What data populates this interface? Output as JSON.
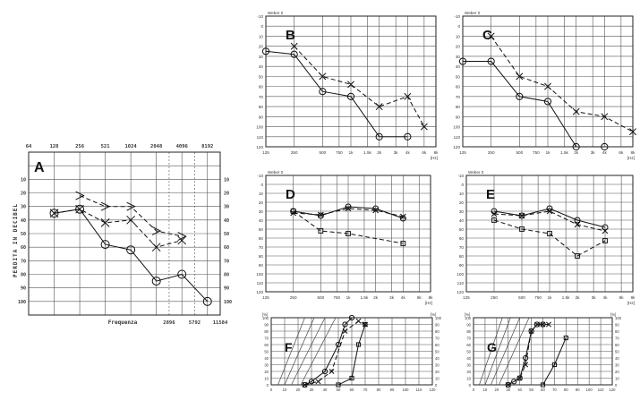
{
  "chart_data": [
    {
      "id": "A",
      "type": "line",
      "panel_label": "A",
      "xlabel": "Frequenza",
      "ylabel": "PERDITA IN DECIBEL",
      "top_ticks": [
        "64",
        "128",
        "256",
        "521",
        "1024",
        "2048",
        "4096",
        "8192"
      ],
      "bottom_ticks": [
        "2896",
        "5792",
        "11584"
      ],
      "left_ticks": [
        "10",
        "20",
        "30",
        "40",
        "50",
        "60",
        "70",
        "80",
        "90",
        "100"
      ],
      "right_ticks": [
        "10",
        "20",
        "30",
        "40",
        "50",
        "60",
        "70",
        "80",
        "90",
        "100"
      ],
      "ylim": [
        -10,
        110
      ],
      "series": [
        {
          "side": "right",
          "marker": "O",
          "x": [
            128,
            256,
            512,
            1024,
            2048,
            4096,
            8192
          ],
          "y": [
            35,
            32,
            58,
            62,
            85,
            80,
            100
          ]
        },
        {
          "side": "left",
          "marker": "X",
          "x": [
            128,
            256,
            512,
            1024,
            2048,
            4096
          ],
          "y": [
            35,
            32,
            42,
            40,
            60,
            55
          ]
        },
        {
          "side": "left",
          "marker": ">",
          "x": [
            256,
            512,
            1024,
            2048,
            4096
          ],
          "y": [
            22,
            30,
            30,
            48,
            52
          ]
        }
      ]
    },
    {
      "id": "B",
      "type": "line",
      "panel_label": "B",
      "ylabel": "Weber 0",
      "left_ticks": [
        "-10",
        "0",
        "10",
        "20",
        "30",
        "40",
        "50",
        "60",
        "70",
        "80",
        "90",
        "100",
        "110",
        "120"
      ],
      "bottom_ticks": [
        "125",
        "250",
        "500",
        "750",
        "1k",
        "1.5k",
        "2k",
        "3k",
        "4k",
        "6k",
        "8k"
      ],
      "xunit": "[Hz]",
      "ylim": [
        -10,
        120
      ],
      "series": [
        {
          "side": "right",
          "marker": "O",
          "x": [
            125,
            250,
            500,
            1000,
            2000,
            4000
          ],
          "y": [
            25,
            28,
            65,
            70,
            110,
            110
          ]
        },
        {
          "side": "left",
          "marker": "X",
          "x": [
            250,
            500,
            1000,
            2000,
            4000,
            6000
          ],
          "y": [
            20,
            50,
            58,
            80,
            70,
            100
          ]
        }
      ]
    },
    {
      "id": "C",
      "type": "line",
      "panel_label": "C",
      "ylabel": "Weber 0",
      "left_ticks": [
        "-10",
        "0",
        "10",
        "20",
        "30",
        "40",
        "50",
        "60",
        "70",
        "80",
        "90",
        "100",
        "110",
        "120"
      ],
      "bottom_ticks": [
        "125",
        "250",
        "500",
        "750",
        "1k",
        "1.5k",
        "2k",
        "3k",
        "4k",
        "6k",
        "8k"
      ],
      "xunit": "[Hz]",
      "ylim": [
        -10,
        120
      ],
      "series": [
        {
          "side": "right",
          "marker": "O",
          "x": [
            125,
            250,
            500,
            1000,
            2000,
            4000
          ],
          "y": [
            35,
            35,
            70,
            75,
            120,
            120
          ]
        },
        {
          "side": "left",
          "marker": "X",
          "x": [
            250,
            500,
            1000,
            2000,
            4000,
            8000
          ],
          "y": [
            10,
            50,
            60,
            85,
            90,
            105
          ]
        }
      ]
    },
    {
      "id": "D",
      "type": "line",
      "panel_label": "D",
      "ylabel": "Weber 0",
      "left_ticks": [
        "-10",
        "0",
        "10",
        "20",
        "30",
        "40",
        "50",
        "60",
        "70",
        "80",
        "90",
        "100",
        "110",
        "120"
      ],
      "bottom_ticks": [
        "125",
        "250",
        "500",
        "750",
        "1k",
        "1.5k",
        "2k",
        "3k",
        "4k",
        "6k",
        "8k"
      ],
      "xunit": "[Hz]",
      "ylim": [
        -10,
        120
      ],
      "series": [
        {
          "side": "right",
          "marker": "O",
          "x": [
            250,
            500,
            1000,
            2000,
            4000
          ],
          "y": [
            30,
            35,
            25,
            27,
            38
          ]
        },
        {
          "side": "left",
          "marker": "X",
          "x": [
            250,
            500,
            1000,
            2000,
            4000
          ],
          "y": [
            32,
            34,
            27,
            29,
            36
          ]
        },
        {
          "side": "both",
          "marker": "square",
          "x": [
            250,
            500,
            1000,
            4000
          ],
          "y": [
            30,
            52,
            55,
            66
          ]
        }
      ]
    },
    {
      "id": "E",
      "type": "line",
      "panel_label": "E",
      "ylabel": "Weber 0",
      "left_ticks": [
        "-10",
        "0",
        "10",
        "20",
        "30",
        "40",
        "50",
        "60",
        "70",
        "80",
        "90",
        "100",
        "110",
        "120"
      ],
      "bottom_ticks": [
        "125",
        "250",
        "500",
        "750",
        "1k",
        "1.5k",
        "2k",
        "3k",
        "4k",
        "6k",
        "8k"
      ],
      "xunit": "[Hz]",
      "ylim": [
        -10,
        120
      ],
      "series": [
        {
          "side": "right",
          "marker": "O",
          "x": [
            250,
            500,
            1000,
            2000,
            4000
          ],
          "y": [
            30,
            35,
            27,
            40,
            48
          ]
        },
        {
          "side": "left",
          "marker": "X",
          "x": [
            250,
            500,
            1000,
            2000,
            4000
          ],
          "y": [
            33,
            35,
            30,
            45,
            52
          ]
        },
        {
          "side": "both",
          "marker": "square",
          "x": [
            250,
            500,
            1000,
            2000,
            4000
          ],
          "y": [
            40,
            50,
            55,
            80,
            63
          ]
        }
      ]
    },
    {
      "id": "F",
      "type": "line",
      "panel_label": "F",
      "yunit": "[%]",
      "left_ticks": [
        "100",
        "90",
        "80",
        "70",
        "60",
        "50",
        "40",
        "30",
        "20",
        "10",
        "0"
      ],
      "right_ticks": [
        "100",
        "90",
        "80",
        "70",
        "60",
        "50",
        "40",
        "30",
        "20",
        "10",
        "0"
      ],
      "bottom_ticks": [
        "0",
        "10",
        "20",
        "30",
        "40",
        "50",
        "60",
        "70",
        "80",
        "90",
        "100",
        "110",
        "120"
      ],
      "xlim": [
        0,
        120
      ],
      "ylim": [
        0,
        100
      ],
      "series": [
        {
          "marker": "O",
          "x": [
            25,
            30,
            40,
            50,
            55,
            60
          ],
          "y": [
            0,
            5,
            20,
            60,
            90,
            100
          ]
        },
        {
          "marker": "X",
          "x": [
            25,
            35,
            45,
            55,
            65,
            70
          ],
          "y": [
            0,
            5,
            20,
            80,
            95,
            90
          ]
        },
        {
          "marker": "square",
          "x": [
            50,
            60,
            65,
            70
          ],
          "y": [
            0,
            10,
            60,
            90
          ]
        }
      ]
    },
    {
      "id": "G",
      "type": "line",
      "panel_label": "G",
      "yunit": "[%]",
      "left_ticks": [
        "100",
        "90",
        "80",
        "70",
        "60",
        "50",
        "40",
        "30",
        "20",
        "10",
        "0"
      ],
      "right_ticks": [
        "100",
        "90",
        "80",
        "70",
        "60",
        "50",
        "40",
        "30",
        "20",
        "10",
        "0"
      ],
      "bottom_ticks": [
        "0",
        "10",
        "20",
        "30",
        "40",
        "50",
        "60",
        "70",
        "80",
        "90",
        "100",
        "110",
        "120"
      ],
      "xlim": [
        0,
        120
      ],
      "ylim": [
        0,
        100
      ],
      "series": [
        {
          "marker": "O",
          "x": [
            30,
            35,
            40,
            45,
            50,
            55,
            60
          ],
          "y": [
            0,
            5,
            10,
            40,
            80,
            90,
            90
          ]
        },
        {
          "marker": "X",
          "x": [
            30,
            40,
            45,
            50,
            55,
            60,
            65
          ],
          "y": [
            0,
            10,
            30,
            80,
            90,
            90,
            90
          ]
        },
        {
          "marker": "square",
          "x": [
            60,
            70,
            80
          ],
          "y": [
            0,
            30,
            70
          ]
        }
      ]
    }
  ]
}
